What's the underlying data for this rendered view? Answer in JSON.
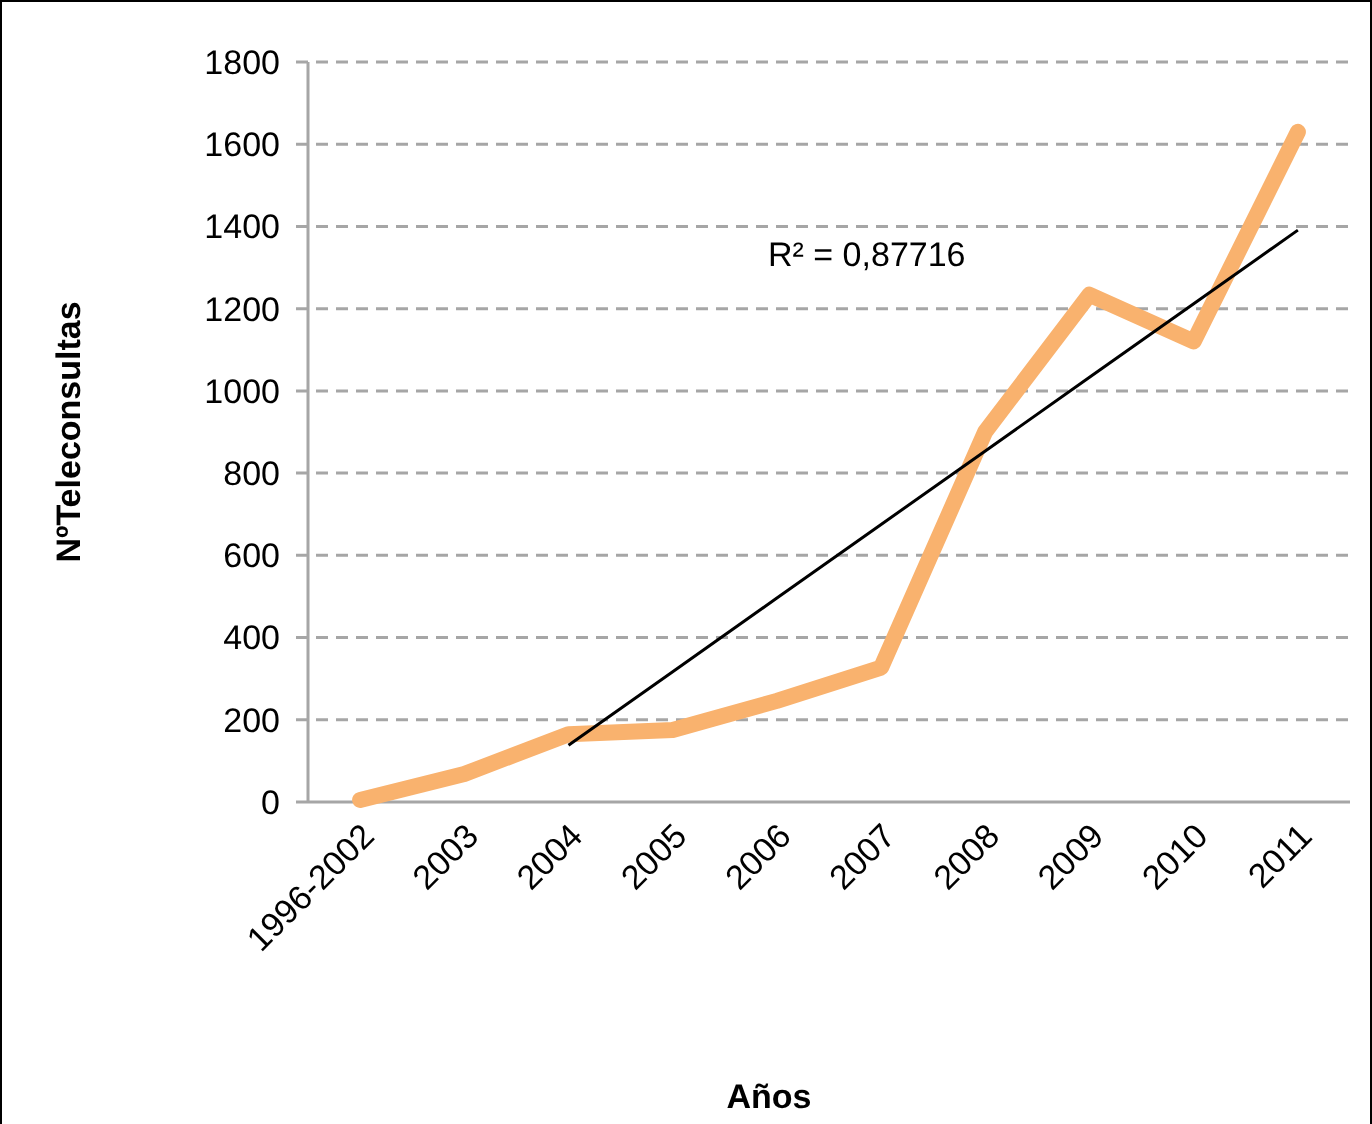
{
  "chart_data": {
    "type": "line",
    "xlabel": "Años",
    "ylabel": "NºTeleconsultas",
    "categories": [
      "1996-2002",
      "2003",
      "2004",
      "2005",
      "2006",
      "2007",
      "2008",
      "2009",
      "2010",
      "2011"
    ],
    "series": [
      {
        "color": "#f9b26e",
        "values": [
          5,
          68,
          165,
          175,
          246,
          327,
          901,
          1234,
          1120,
          1630
        ]
      },
      {
        "type": "line",
        "color": "#000000",
        "values": [
          null,
          null,
          138,
          317,
          496,
          675,
          854,
          1033,
          1212,
          1391
        ]
      }
    ],
    "ylim": [
      0,
      1800
    ],
    "yticks": [
      0,
      200,
      400,
      600,
      800,
      1000,
      1200,
      1400,
      1600,
      1800
    ],
    "grid": "y",
    "marker": "none",
    "line_style": "solid",
    "annotations": [
      "R² = 0,87716"
    ]
  }
}
